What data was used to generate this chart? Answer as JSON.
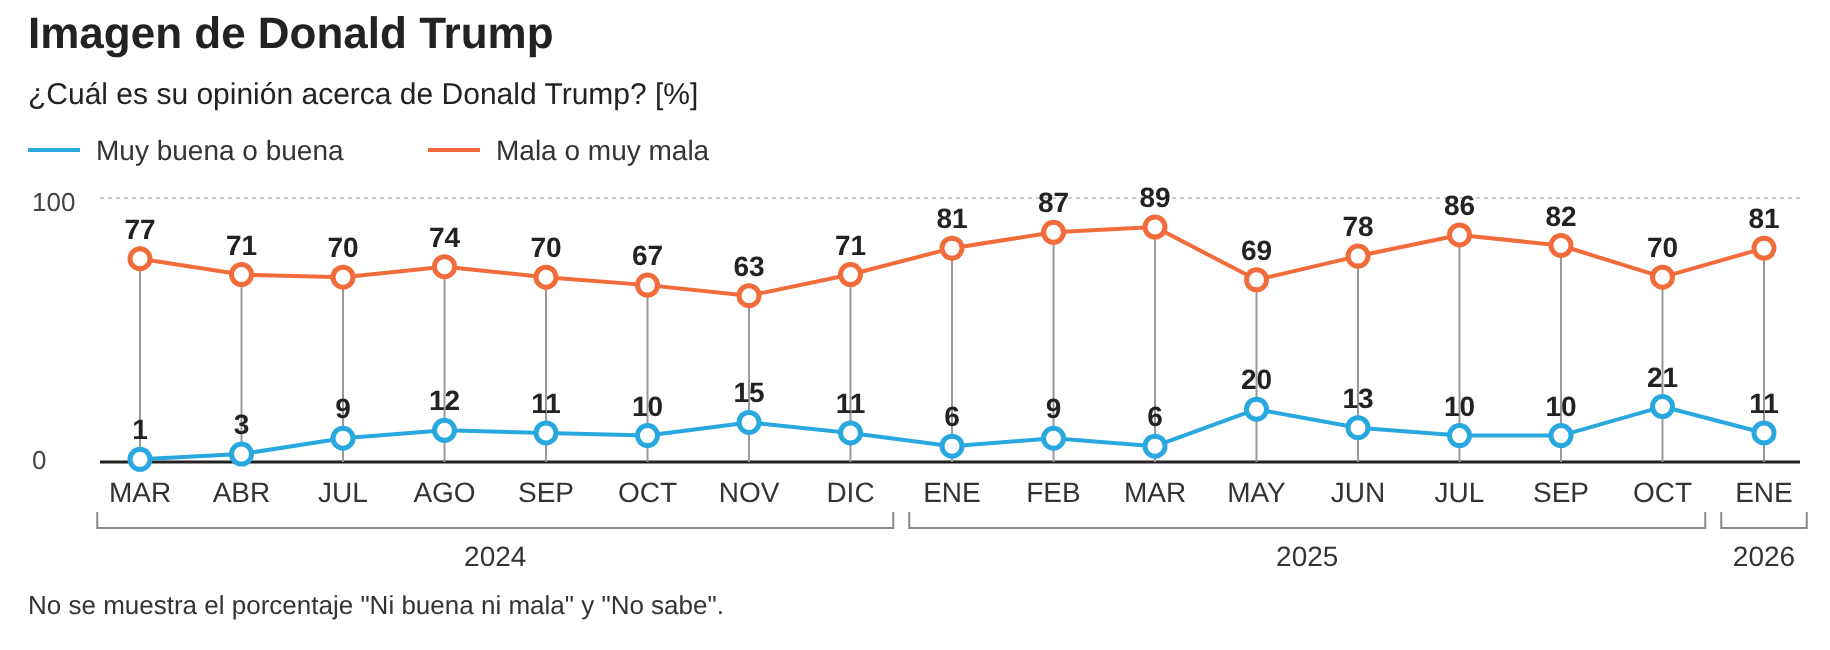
{
  "chart_data": {
    "type": "line",
    "title": "Imagen de Donald Trump",
    "subtitle": "¿Cuál es su opinión acerca de Donald Trump? [%]",
    "categories": [
      "MAR",
      "ABR",
      "JUL",
      "AGO",
      "SEP",
      "OCT",
      "NOV",
      "DIC",
      "ENE",
      "FEB",
      "MAR",
      "MAY",
      "JUN",
      "JUL",
      "SEP",
      "OCT",
      "ENE"
    ],
    "series": [
      {
        "name": "Muy buena o buena",
        "color": "#29a8e0",
        "values": [
          1,
          3,
          9,
          12,
          11,
          10,
          15,
          11,
          6,
          9,
          6,
          20,
          13,
          10,
          10,
          21,
          11
        ]
      },
      {
        "name": "Mala o muy mala",
        "color": "#f26b3a",
        "values": [
          77,
          71,
          70,
          74,
          70,
          67,
          63,
          71,
          81,
          87,
          89,
          69,
          78,
          86,
          82,
          70,
          81
        ]
      }
    ],
    "ylim": [
      0,
      100
    ],
    "yticks": [
      0,
      100
    ],
    "grid": true,
    "legend": "top left",
    "marker": "circle",
    "data_labels": true,
    "annotations": [
      "2024",
      "2025",
      "2026",
      "No se muestra el porcentaje \"Ni buena ni mala\" y \"No sabe\"."
    ]
  }
}
